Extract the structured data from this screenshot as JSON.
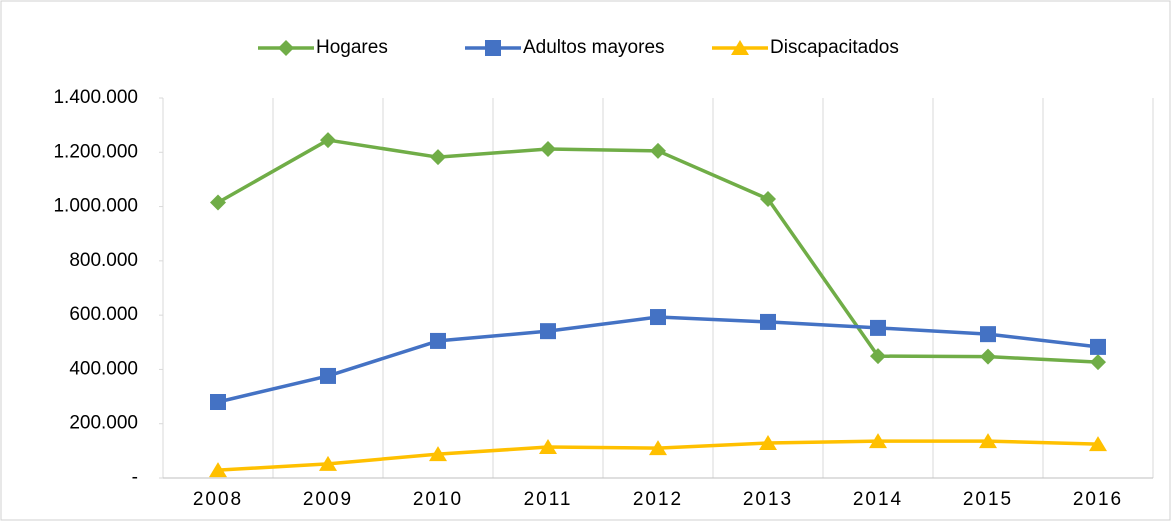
{
  "chart_data": {
    "type": "line",
    "categories": [
      "2008",
      "2009",
      "2010",
      "2011",
      "2012",
      "2013",
      "2014",
      "2015",
      "2016"
    ],
    "series": [
      {
        "name": "Hogares",
        "color": "#70ad47",
        "marker": "diamond",
        "values": [
          1015000,
          1245000,
          1182000,
          1212000,
          1205000,
          1028000,
          449000,
          447000,
          427000
        ]
      },
      {
        "name": "Adultos mayores",
        "color": "#4472c4",
        "marker": "square",
        "values": [
          280000,
          376000,
          505000,
          541000,
          593000,
          575000,
          553000,
          530000,
          483000
        ]
      },
      {
        "name": "Discapacitados",
        "color": "#ffc000",
        "marker": "triangle",
        "values": [
          29000,
          52000,
          88000,
          114000,
          110000,
          129000,
          136000,
          136000,
          125000
        ]
      }
    ],
    "ylim": [
      0,
      1400000
    ],
    "yticks": [
      {
        "value": 0,
        "label": "-"
      },
      {
        "value": 200000,
        "label": "200.000"
      },
      {
        "value": 400000,
        "label": "400.000"
      },
      {
        "value": 600000,
        "label": "600.000"
      },
      {
        "value": 800000,
        "label": "800.000"
      },
      {
        "value": 1000000,
        "label": "1.000.000"
      },
      {
        "value": 1200000,
        "label": "1.200.000"
      },
      {
        "value": 1400000,
        "label": "1.400.000"
      }
    ],
    "legend": "top",
    "grid": "vertical"
  }
}
